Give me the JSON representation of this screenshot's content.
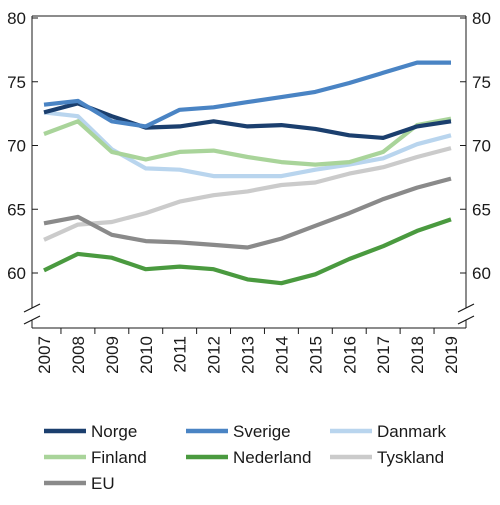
{
  "chart_data": {
    "type": "line",
    "x": [
      "2007",
      "2008",
      "2009",
      "2010",
      "2011",
      "2012",
      "2013",
      "2014",
      "2015",
      "2016",
      "2017",
      "2018",
      "2019"
    ],
    "series": [
      {
        "name": "Norge",
        "color": "#1b3f6e",
        "values": [
          72.6,
          73.3,
          72.3,
          71.4,
          71.5,
          71.9,
          71.5,
          71.6,
          71.3,
          70.8,
          70.6,
          71.5,
          71.9
        ]
      },
      {
        "name": "Sverige",
        "color": "#4a84c4",
        "values": [
          73.2,
          73.5,
          71.9,
          71.5,
          72.8,
          73.0,
          73.4,
          73.8,
          74.2,
          74.9,
          75.7,
          76.5,
          76.5
        ]
      },
      {
        "name": "Danmark",
        "color": "#b9d5ee",
        "values": [
          72.6,
          72.3,
          69.7,
          68.2,
          68.1,
          67.6,
          67.6,
          67.6,
          68.1,
          68.5,
          69.0,
          70.1,
          70.8
        ]
      },
      {
        "name": "Finland",
        "color": "#a9d49a",
        "values": [
          70.9,
          71.9,
          69.5,
          68.9,
          69.5,
          69.6,
          69.1,
          68.7,
          68.5,
          68.7,
          69.5,
          71.6,
          72.1
        ]
      },
      {
        "name": "Nederland",
        "color": "#4a9a3f",
        "values": [
          60.2,
          61.5,
          61.2,
          60.3,
          60.5,
          60.3,
          59.5,
          59.2,
          59.9,
          61.1,
          62.1,
          63.3,
          64.2
        ]
      },
      {
        "name": "Tyskland",
        "color": "#cbcbcb",
        "values": [
          62.6,
          63.8,
          64.0,
          64.7,
          65.6,
          66.1,
          66.4,
          66.9,
          67.1,
          67.8,
          68.3,
          69.1,
          69.8
        ]
      },
      {
        "name": "EU",
        "color": "#8a8a8a",
        "values": [
          63.9,
          64.4,
          63.0,
          62.5,
          62.4,
          62.2,
          62.0,
          62.7,
          63.7,
          64.7,
          65.8,
          66.7,
          67.4
        ]
      }
    ],
    "y_ticks": [
      "60",
      "65",
      "70",
      "75",
      "80"
    ],
    "ylim": [
      55,
      80
    ],
    "axis_break": true,
    "grid": false,
    "legend_position": "bottom"
  }
}
